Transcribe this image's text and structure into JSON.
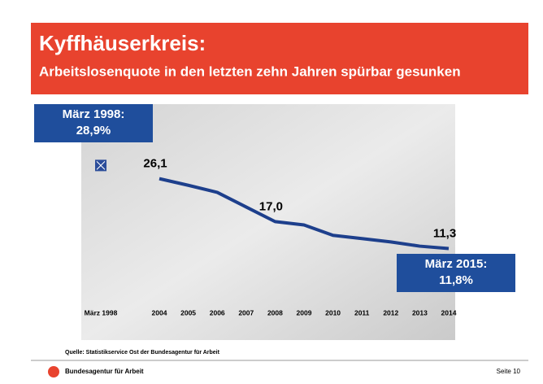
{
  "header": {
    "title": "Kyffhäuserkreis:",
    "subtitle": "Arbeitslosenquote in den letzten zehn Jahren spürbar gesunken"
  },
  "chart_data": {
    "type": "line",
    "categories": [
      "März 1998",
      "2004",
      "2005",
      "2006",
      "2007",
      "2008",
      "2009",
      "2010",
      "2011",
      "2012",
      "2013",
      "2014"
    ],
    "series": [
      {
        "color": "#2b4d9a",
        "marker": "square",
        "values": [
          28.9,
          null,
          null,
          null,
          null,
          null,
          null,
          null,
          null,
          null,
          null,
          null
        ]
      },
      {
        "color": "#1d3f8c",
        "values": [
          null,
          26.1,
          24.7,
          23.2,
          20.1,
          17.0,
          16.3,
          14.1,
          13.4,
          12.7,
          11.8,
          11.3
        ],
        "value_labels": [
          null,
          "26,1",
          null,
          null,
          null,
          "17,0",
          null,
          null,
          null,
          null,
          null,
          "11,3"
        ]
      }
    ],
    "ylim": [
      0,
      35
    ],
    "annotations": [
      {
        "lines": [
          "März 1998:",
          "28,9%"
        ]
      },
      {
        "lines": [
          "März 2015:",
          "11,8%"
        ]
      }
    ]
  },
  "source": "Quelle: Statistikservice Ost der Bundesagentur für Arbeit",
  "footer": {
    "organization": "Bundesagentur für Arbeit",
    "page": "Seite 10"
  }
}
